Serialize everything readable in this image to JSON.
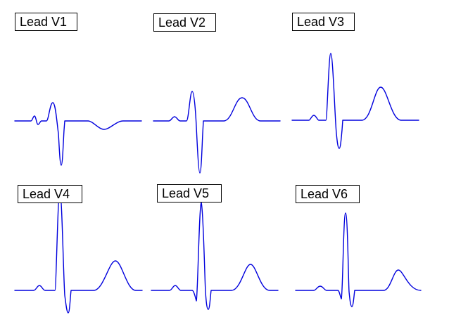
{
  "figure": {
    "trace_color": "#0000dd",
    "leads": [
      {
        "id": "v1",
        "label": "Lead V1"
      },
      {
        "id": "v2",
        "label": "Lead V2"
      },
      {
        "id": "v3",
        "label": "Lead V3"
      },
      {
        "id": "v4",
        "label": "Lead V4"
      },
      {
        "id": "v5",
        "label": "Lead V5"
      },
      {
        "id": "v6",
        "label": "Lead V6"
      }
    ]
  }
}
